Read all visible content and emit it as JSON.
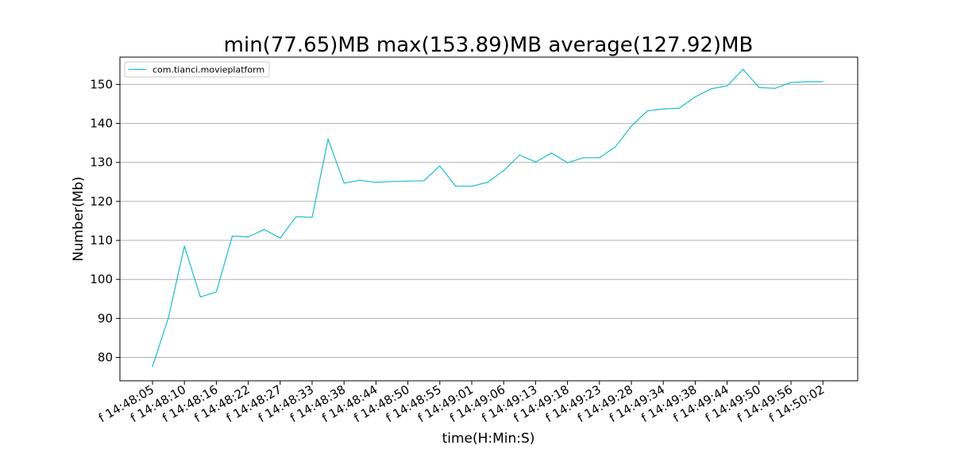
{
  "chart_data": {
    "type": "line",
    "title": "min(77.65)MB max(153.89)MB average(127.92)MB",
    "xlabel": "time(H:Min:S)",
    "ylabel": "Number(Mb)",
    "ylim": [
      74,
      157
    ],
    "yticks": [
      80,
      90,
      100,
      110,
      120,
      130,
      140,
      150
    ],
    "grid": "horizontal",
    "legend_position": "top-left",
    "colors": {
      "series": "#17becf",
      "grid": "#b0b0b0",
      "axes": "#000000"
    },
    "xtick_labels": [
      "f 14:48:05",
      "f 14:48:10",
      "f 14:48:16",
      "f 14:48:22",
      "f 14:48:27",
      "f 14:48:33",
      "f 14:48:38",
      "f 14:48:44",
      "f 14:48:50",
      "f 14:48:55",
      "f 14:49:01",
      "f 14:49:06",
      "f 14:49:13",
      "f 14:49:18",
      "f 14:49:23",
      "f 14:49:28",
      "f 14:49:34",
      "f 14:49:38",
      "f 14:49:44",
      "f 14:49:50",
      "f 14:49:56",
      "f 14:50:02"
    ],
    "series": [
      {
        "name": "com.tianci.movieplatform",
        "values": [
          77.65,
          90.2,
          108.5,
          95.5,
          96.8,
          111.1,
          110.9,
          112.8,
          110.6,
          116.1,
          115.9,
          136.0,
          124.7,
          125.4,
          124.9,
          125.1,
          125.2,
          125.3,
          129.1,
          123.9,
          123.9,
          124.9,
          127.9,
          131.9,
          130.1,
          132.4,
          129.9,
          131.2,
          131.2,
          134.0,
          139.3,
          143.2,
          143.7,
          143.9,
          146.8,
          148.9,
          149.6,
          153.89,
          149.2,
          149.0,
          150.5,
          150.7,
          150.7
        ]
      }
    ]
  }
}
